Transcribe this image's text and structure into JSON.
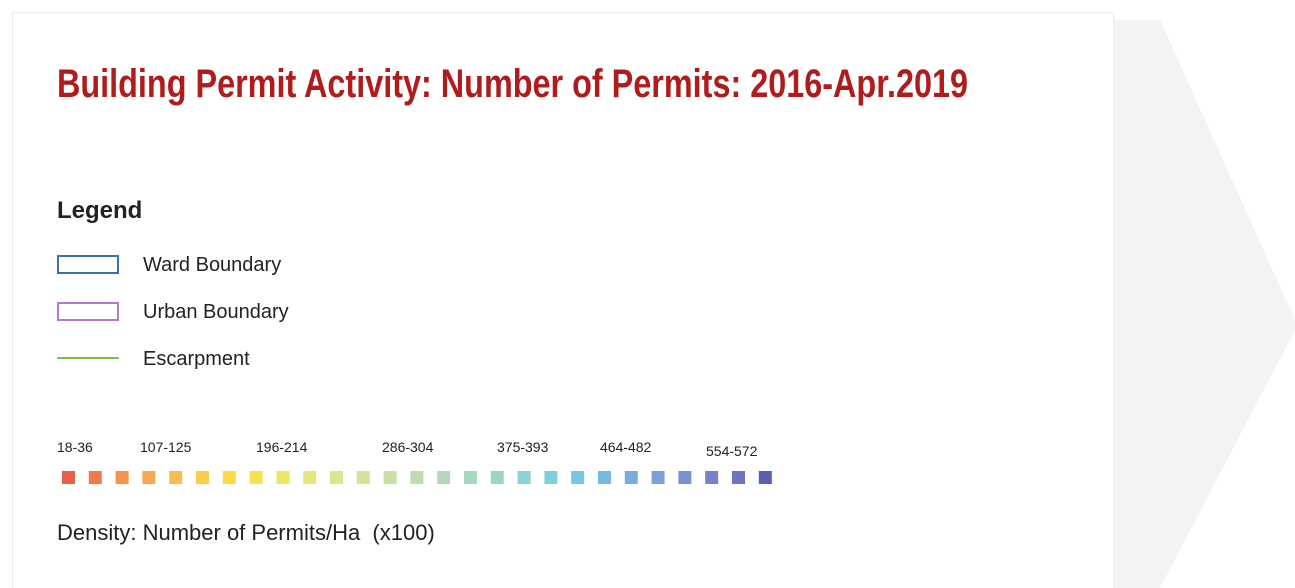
{
  "title": "Building Permit Activity: Number of Permits: 2016-Apr.2019",
  "legend": {
    "heading": "Legend",
    "items": [
      {
        "label": "Ward Boundary",
        "color": "#3a6fb0",
        "kind": "box"
      },
      {
        "label": "Urban Boundary",
        "color": "#b07cc6",
        "kind": "box"
      },
      {
        "label": "Escarpment",
        "color": "#7ac143",
        "kind": "line"
      }
    ]
  },
  "density_scale": {
    "labels": [
      "18-36",
      "107-125",
      "196-214",
      "286-304",
      "375-393",
      "464-482",
      "554-572"
    ],
    "colors": [
      "#e8604a",
      "#ef7a45",
      "#f4934a",
      "#f7a94e",
      "#f9bd4f",
      "#fbcd4c",
      "#fbdc48",
      "#f6e24d",
      "#eee565",
      "#e6e67c",
      "#dde68c",
      "#d3e39a",
      "#c9dfa4",
      "#bfdcaf",
      "#b3d9b8",
      "#a7d7c0",
      "#9bd5ca",
      "#8dd2d4",
      "#7fcfdf",
      "#74c8e6",
      "#75bae3",
      "#79acde",
      "#7d9fd9",
      "#7c91d2",
      "#7582c9",
      "#6d74c0",
      "#5b5fb3"
    ],
    "caption": "Density: Number of Permits/Ha  (x100)"
  }
}
